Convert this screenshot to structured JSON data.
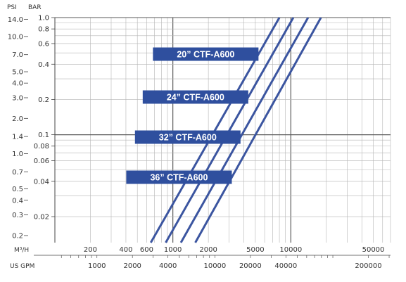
{
  "chart_data": {
    "type": "line",
    "title": "",
    "y_axis_left_title": "PSI",
    "y_axis_right_title": "BAR",
    "x_axis_top_title": "M³/H",
    "x_axis_bottom_title": "US GPM",
    "x_scale": "log",
    "y_scale": "log",
    "xlim_m3h": [
      100,
      70000
    ],
    "ylim_bar": [
      0.012,
      1.0
    ],
    "grid": true,
    "psi_ticks": [
      "14.0",
      "10.0",
      "7.0",
      "5.0",
      "4.0",
      "3.0",
      "2.0",
      "1.4",
      "1.0",
      "0.7",
      "0.5",
      "0.4",
      "0.3",
      "0.2"
    ],
    "bar_ticks": [
      "1.0",
      "0.8",
      "0.6",
      "0.4",
      "0.2",
      "0.1",
      "0.08",
      "0.06",
      "0.04",
      "0.02"
    ],
    "m3h_ticks": [
      "200",
      "400",
      "600",
      "1000",
      "2000",
      "5000",
      "10000",
      "50000"
    ],
    "gpm_ticks": [
      "1000",
      "2000",
      "4000",
      "10000",
      "20000",
      "40000",
      "200000"
    ],
    "series": [
      {
        "name": "20” CTF-A600",
        "x_m3h": [
          650,
          8000
        ],
        "y_bar": [
          0.012,
          1.0
        ]
      },
      {
        "name": "24” CTF-A600",
        "x_m3h": [
          870,
          10500
        ],
        "y_bar": [
          0.012,
          1.0
        ]
      },
      {
        "name": "32” CTF-A600",
        "x_m3h": [
          1170,
          14000
        ],
        "y_bar": [
          0.012,
          1.0
        ]
      },
      {
        "name": "36” CTF-A600",
        "x_m3h": [
          1550,
          18000
        ],
        "y_bar": [
          0.012,
          1.0
        ]
      }
    ],
    "colors": {
      "line": "#3b55a0",
      "label_bg": "#2f4f9e",
      "label_text": "#ffffff",
      "grid": "#b5b5b5",
      "grid_major": "#5a5a5a"
    }
  }
}
